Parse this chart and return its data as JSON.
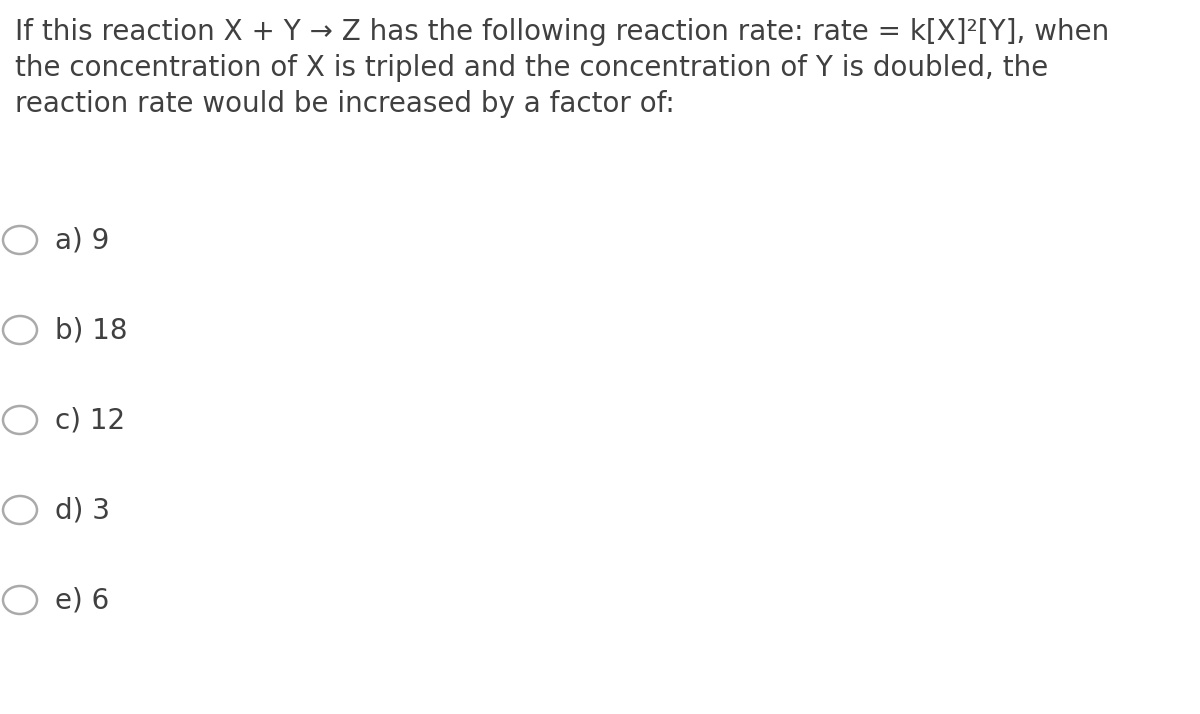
{
  "background_color": "#ffffff",
  "question_lines": [
    "If this reaction X + Y → Z has the following reaction rate: rate = k[X]²[Y], when",
    "the concentration of X is tripled and the concentration of Y is doubled, the",
    "reaction rate would be increased by a factor of:"
  ],
  "options": [
    "a) 9",
    "b) 18",
    "c) 12",
    "d) 3",
    "e) 6"
  ],
  "text_color": "#404040",
  "circle_edge_color": "#aaaaaa",
  "circle_linewidth": 1.8,
  "question_fontsize": 20,
  "option_fontsize": 20,
  "fig_width": 12.0,
  "fig_height": 7.14,
  "dpi": 100
}
